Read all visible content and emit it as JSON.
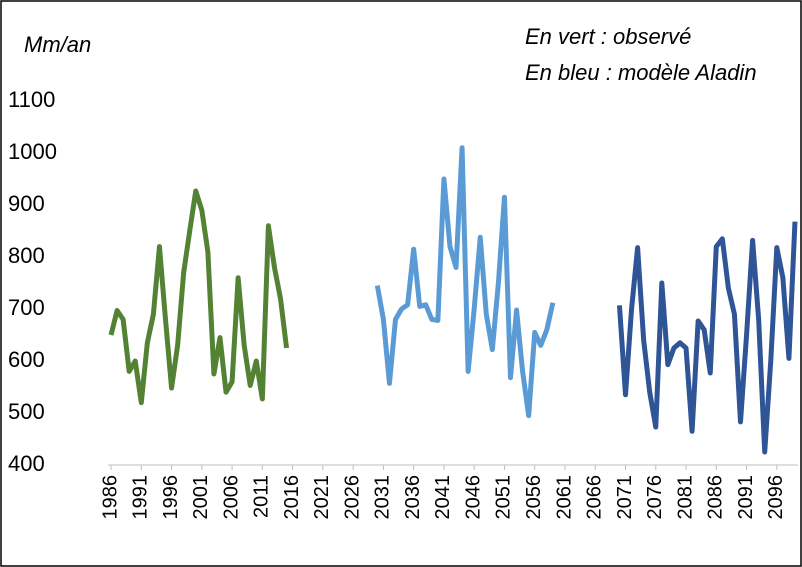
{
  "chart_data": {
    "type": "line",
    "annotations": [
      "Mm/an",
      "En vert : observé",
      "En bleu : modèle Aladin"
    ],
    "xlim": [
      1985.5,
      2099.5
    ],
    "xticks": [
      1986,
      1991,
      1996,
      2001,
      2006,
      2011,
      2016,
      2021,
      2026,
      2031,
      2036,
      2041,
      2046,
      2051,
      2056,
      2061,
      2066,
      2071,
      2076,
      2081,
      2086,
      2091,
      2096
    ],
    "ylim": [
      400,
      1100
    ],
    "yticks": [
      400,
      500,
      600,
      700,
      800,
      900,
      1000,
      1100
    ],
    "series": [
      {
        "color": "#548235",
        "x": [
          1986,
          1987,
          1988,
          1989,
          1990,
          1991,
          1992,
          1993,
          1994,
          1995,
          1996,
          1997,
          1998,
          1999,
          2000,
          2001,
          2002,
          2003,
          2004,
          2005,
          2006,
          2007,
          2008,
          2009,
          2010,
          2011,
          2012,
          2013,
          2014,
          2015
        ],
        "values": [
          650,
          697,
          680,
          580,
          600,
          520,
          635,
          690,
          820,
          680,
          548,
          630,
          770,
          850,
          927,
          890,
          810,
          575,
          645,
          540,
          560,
          760,
          630,
          553,
          600,
          527,
          860,
          780,
          720,
          625
        ]
      },
      {
        "color": "#5b9bd5",
        "x": [
          2030,
          2031,
          2032,
          2033,
          2034,
          2035,
          2036,
          2037,
          2038,
          2039,
          2040,
          2041,
          2042,
          2043,
          2044,
          2045,
          2046,
          2047,
          2048,
          2049,
          2050,
          2051,
          2052,
          2053,
          2054,
          2055,
          2056,
          2057,
          2058,
          2059
        ],
        "values": [
          745,
          680,
          557,
          680,
          700,
          708,
          815,
          705,
          708,
          680,
          678,
          950,
          820,
          780,
          1010,
          580,
          700,
          838,
          690,
          622,
          750,
          915,
          568,
          698,
          580,
          495,
          655,
          630,
          660,
          712
        ]
      },
      {
        "color": "#2f5597",
        "x": [
          2070,
          2071,
          2072,
          2073,
          2074,
          2075,
          2076,
          2077,
          2078,
          2079,
          2080,
          2081,
          2082,
          2083,
          2084,
          2085,
          2086,
          2087,
          2088,
          2089,
          2090,
          2091,
          2092,
          2093,
          2094,
          2095,
          2096,
          2097,
          2098,
          2099
        ],
        "values": [
          707,
          535,
          700,
          818,
          640,
          540,
          473,
          750,
          593,
          625,
          635,
          625,
          465,
          677,
          660,
          577,
          820,
          835,
          740,
          690,
          483,
          650,
          832,
          680,
          425,
          600,
          818,
          760,
          605,
          868
        ]
      }
    ]
  }
}
